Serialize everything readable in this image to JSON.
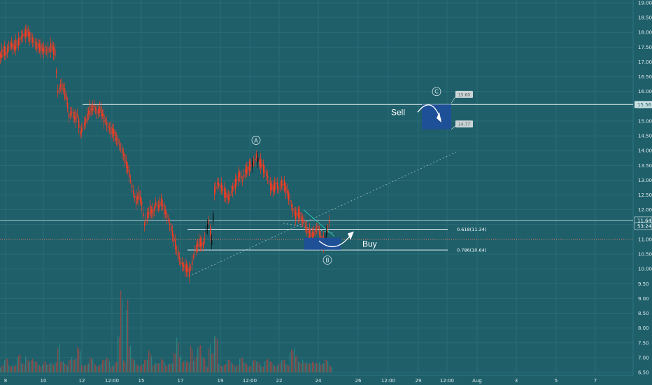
{
  "chart_data": {
    "type": "candlestick",
    "title": "",
    "xlabel": "",
    "ylabel": "",
    "ylim": [
      6.5,
      19.0
    ],
    "grid": true,
    "colors": {
      "background": "#1e5f6a",
      "grid": "#2b6d77",
      "candle_up": "#ff3b1f",
      "candle_up_recent": "#0d0d0d",
      "candle_down": "#ff3b1f",
      "volume": "#9a4a47",
      "volume_alt": "#2a8a86",
      "levels": "#e6f0f2",
      "zone": "#1f4f9a",
      "price_line": "#ff6b4d",
      "axis_text": "#dfe9eb"
    },
    "y_ticks": [
      "19.00",
      "18.50",
      "18.00",
      "17.50",
      "17.00",
      "16.50",
      "16.00",
      "15.50",
      "15.00",
      "14.50",
      "14.00",
      "13.50",
      "13.00",
      "12.50",
      "12.00",
      "11.50",
      "11.00",
      "10.50",
      "10.00",
      "9.50",
      "9.00",
      "8.50",
      "8.00",
      "7.50",
      "7.00",
      "6.50"
    ],
    "x_ticks": [
      "8",
      "10",
      "12",
      "12:00",
      "15",
      "17",
      "19",
      "12:00",
      "22",
      "24",
      "26",
      "12:00",
      "29",
      "12:00",
      "Aug",
      "3",
      "5",
      "7"
    ],
    "ohlc_path": [
      [
        0,
        17.2
      ],
      [
        4,
        17.4
      ],
      [
        8,
        17.3
      ],
      [
        14,
        17.6
      ],
      [
        20,
        17.5
      ],
      [
        26,
        17.7
      ],
      [
        32,
        17.9
      ],
      [
        38,
        18.0
      ],
      [
        44,
        17.8
      ],
      [
        50,
        17.6
      ],
      [
        56,
        17.5
      ],
      [
        62,
        17.4
      ],
      [
        68,
        17.4
      ],
      [
        74,
        17.5
      ],
      [
        78,
        17.3
      ],
      [
        82,
        16.0
      ],
      [
        86,
        16.2
      ],
      [
        90,
        16.1
      ],
      [
        94,
        15.8
      ],
      [
        98,
        15.2
      ],
      [
        102,
        15.3
      ],
      [
        106,
        15.1
      ],
      [
        110,
        15.2
      ],
      [
        114,
        14.6
      ],
      [
        118,
        14.8
      ],
      [
        122,
        15.0
      ],
      [
        126,
        15.3
      ],
      [
        130,
        15.4
      ],
      [
        134,
        15.5
      ],
      [
        138,
        15.3
      ],
      [
        142,
        15.4
      ],
      [
        146,
        15.2
      ],
      [
        150,
        15.0
      ],
      [
        154,
        14.8
      ],
      [
        158,
        14.7
      ],
      [
        162,
        14.6
      ],
      [
        166,
        14.4
      ],
      [
        170,
        14.2
      ],
      [
        174,
        14.0
      ],
      [
        178,
        13.7
      ],
      [
        182,
        13.4
      ],
      [
        186,
        13.0
      ],
      [
        190,
        12.6
      ],
      [
        194,
        12.3
      ],
      [
        198,
        12.5
      ],
      [
        202,
        12.2
      ],
      [
        206,
        11.5
      ],
      [
        210,
        11.8
      ],
      [
        214,
        12.0
      ],
      [
        218,
        11.9
      ],
      [
        222,
        12.2
      ],
      [
        226,
        12.1
      ],
      [
        230,
        12.3
      ],
      [
        234,
        12.0
      ],
      [
        238,
        11.8
      ],
      [
        242,
        11.5
      ],
      [
        246,
        11.2
      ],
      [
        250,
        10.8
      ],
      [
        254,
        10.5
      ],
      [
        258,
        10.2
      ],
      [
        262,
        10.1
      ],
      [
        266,
        10.0
      ],
      [
        270,
        9.9
      ],
      [
        274,
        10.2
      ],
      [
        278,
        10.6
      ],
      [
        282,
        10.8
      ],
      [
        286,
        10.9
      ],
      [
        290,
        10.8
      ],
      [
        294,
        11.3
      ],
      [
        298,
        11.6
      ],
      [
        302,
        10.9
      ],
      [
        306,
        12.6
      ],
      [
        310,
        12.9
      ],
      [
        314,
        12.8
      ],
      [
        318,
        12.7
      ],
      [
        322,
        12.5
      ],
      [
        326,
        12.4
      ],
      [
        330,
        12.6
      ],
      [
        334,
        12.8
      ],
      [
        338,
        13.0
      ],
      [
        342,
        13.2
      ],
      [
        346,
        13.0
      ],
      [
        350,
        13.3
      ],
      [
        354,
        13.4
      ],
      [
        358,
        13.5
      ],
      [
        362,
        13.6
      ],
      [
        366,
        13.8
      ],
      [
        370,
        13.6
      ],
      [
        374,
        13.5
      ],
      [
        378,
        13.3
      ],
      [
        382,
        13.1
      ],
      [
        386,
        12.8
      ],
      [
        390,
        12.7
      ],
      [
        394,
        12.9
      ],
      [
        398,
        12.7
      ],
      [
        402,
        12.9
      ],
      [
        406,
        12.8
      ],
      [
        410,
        12.6
      ],
      [
        414,
        12.3
      ],
      [
        418,
        12.0
      ],
      [
        422,
        11.8
      ],
      [
        426,
        11.9
      ],
      [
        430,
        11.7
      ],
      [
        434,
        11.6
      ],
      [
        438,
        11.3
      ],
      [
        442,
        11.2
      ],
      [
        446,
        11.1
      ],
      [
        450,
        11.3
      ],
      [
        454,
        11.4
      ],
      [
        458,
        11.0
      ],
      [
        462,
        10.9
      ],
      [
        466,
        11.2
      ],
      [
        470,
        11.6
      ]
    ],
    "volume_profile": [
      [
        0,
        0.1
      ],
      [
        6,
        0.15
      ],
      [
        12,
        0.08
      ],
      [
        18,
        0.12
      ],
      [
        24,
        0.2
      ],
      [
        30,
        0.1
      ],
      [
        36,
        0.22
      ],
      [
        42,
        0.16
      ],
      [
        48,
        0.12
      ],
      [
        54,
        0.1
      ],
      [
        60,
        0.14
      ],
      [
        66,
        0.09
      ],
      [
        72,
        0.11
      ],
      [
        78,
        0.18
      ],
      [
        82,
        0.35
      ],
      [
        86,
        0.12
      ],
      [
        92,
        0.1
      ],
      [
        98,
        0.22
      ],
      [
        104,
        0.15
      ],
      [
        110,
        0.28
      ],
      [
        116,
        0.12
      ],
      [
        122,
        0.1
      ],
      [
        128,
        0.16
      ],
      [
        134,
        0.12
      ],
      [
        140,
        0.1
      ],
      [
        146,
        0.14
      ],
      [
        152,
        0.18
      ],
      [
        158,
        0.1
      ],
      [
        164,
        0.12
      ],
      [
        168,
        0.4
      ],
      [
        172,
        1.0
      ],
      [
        176,
        0.2
      ],
      [
        180,
        0.95
      ],
      [
        184,
        0.3
      ],
      [
        188,
        0.15
      ],
      [
        194,
        0.12
      ],
      [
        200,
        0.1
      ],
      [
        206,
        0.14
      ],
      [
        212,
        0.28
      ],
      [
        218,
        0.12
      ],
      [
        224,
        0.1
      ],
      [
        230,
        0.16
      ],
      [
        236,
        0.12
      ],
      [
        242,
        0.1
      ],
      [
        248,
        0.22
      ],
      [
        252,
        0.45
      ],
      [
        256,
        0.28
      ],
      [
        260,
        0.14
      ],
      [
        266,
        0.12
      ],
      [
        272,
        0.35
      ],
      [
        276,
        0.22
      ],
      [
        282,
        0.3
      ],
      [
        288,
        0.18
      ],
      [
        294,
        0.1
      ],
      [
        298,
        0.38
      ],
      [
        302,
        0.22
      ],
      [
        306,
        0.4
      ],
      [
        312,
        0.12
      ],
      [
        318,
        0.1
      ],
      [
        324,
        0.14
      ],
      [
        330,
        0.12
      ],
      [
        336,
        0.1
      ],
      [
        342,
        0.16
      ],
      [
        348,
        0.12
      ],
      [
        354,
        0.1
      ],
      [
        360,
        0.14
      ],
      [
        366,
        0.12
      ],
      [
        372,
        0.1
      ],
      [
        378,
        0.16
      ],
      [
        384,
        0.12
      ],
      [
        390,
        0.1
      ],
      [
        396,
        0.12
      ],
      [
        402,
        0.14
      ],
      [
        408,
        0.1
      ],
      [
        414,
        0.38
      ],
      [
        418,
        0.3
      ],
      [
        422,
        0.18
      ],
      [
        426,
        0.12
      ],
      [
        432,
        0.2
      ],
      [
        436,
        0.14
      ],
      [
        440,
        0.1
      ],
      [
        446,
        0.12
      ],
      [
        452,
        0.16
      ],
      [
        458,
        0.1
      ],
      [
        464,
        0.14
      ],
      [
        470,
        0.1
      ]
    ],
    "annotations": {
      "wave_a": "A",
      "wave_b": "B",
      "wave_c": "C",
      "sell_label": "Sell",
      "buy_label": "Buy",
      "fib_618": "0.618(11.34)",
      "fib_786": "0.786(10.64)",
      "target_upper": "15.60",
      "target_lower": "14.77"
    },
    "levels": {
      "resistance": 15.56,
      "last_price": 11.64,
      "fib_618": 11.34,
      "fib_786": 10.64
    },
    "price_badges": {
      "resistance": "15.56",
      "last_price": "11.64",
      "countdown": "53:24"
    }
  }
}
